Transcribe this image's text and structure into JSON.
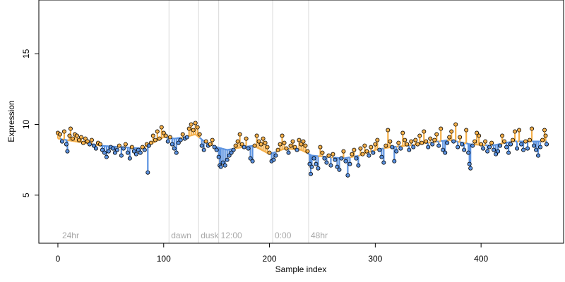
{
  "chart_data": {
    "type": "scatter",
    "title": "",
    "xlabel": "Sample index",
    "ylabel": "Expression",
    "xlim": [
      -18,
      478
    ],
    "ylim": [
      1.6,
      18.8
    ],
    "xticks": [
      0,
      100,
      200,
      300,
      400
    ],
    "yticks": [
      5,
      10,
      15
    ],
    "grid": false,
    "legend": "none",
    "colors": {
      "above": "#f5b04a",
      "below": "#5b92e0",
      "point_stroke": "#000000",
      "phase_line": "#d9d9d9",
      "phase_text": "#a8a8a8",
      "axis": "#000000"
    },
    "phases": [
      {
        "label": "24hr",
        "x": 2
      },
      {
        "label": "dawn",
        "x": 105
      },
      {
        "label": "dusk",
        "x": 133
      },
      {
        "label": "12:00",
        "x": 152
      },
      {
        "label": "0:00",
        "x": 203
      },
      {
        "label": "48hr",
        "x": 237
      }
    ],
    "baseline_knots": [
      [
        0,
        9.0
      ],
      [
        40,
        8.5
      ],
      [
        80,
        8.3
      ],
      [
        100,
        9.1
      ],
      [
        110,
        9.0
      ],
      [
        120,
        9.1
      ],
      [
        130,
        9.3
      ],
      [
        140,
        8.7
      ],
      [
        150,
        8.4
      ],
      [
        160,
        8.2
      ],
      [
        175,
        8.4
      ],
      [
        185,
        8.5
      ],
      [
        200,
        7.9
      ],
      [
        215,
        8.3
      ],
      [
        230,
        8.2
      ],
      [
        240,
        7.8
      ],
      [
        255,
        7.7
      ],
      [
        270,
        7.6
      ],
      [
        285,
        7.8
      ],
      [
        300,
        8.2
      ],
      [
        315,
        8.4
      ],
      [
        330,
        8.5
      ],
      [
        350,
        8.7
      ],
      [
        370,
        8.9
      ],
      [
        390,
        8.6
      ],
      [
        410,
        8.5
      ],
      [
        430,
        8.8
      ],
      [
        462,
        8.8
      ]
    ],
    "points": [
      [
        0,
        9.4
      ],
      [
        2,
        9.3
      ],
      [
        4,
        8.8
      ],
      [
        6,
        9.5
      ],
      [
        8,
        8.6
      ],
      [
        9,
        8.1
      ],
      [
        11,
        9.2
      ],
      [
        12,
        9.7
      ],
      [
        14,
        9.0
      ],
      [
        16,
        9.3
      ],
      [
        18,
        9.2
      ],
      [
        20,
        8.9
      ],
      [
        22,
        9.1
      ],
      [
        24,
        8.7
      ],
      [
        26,
        9.0
      ],
      [
        28,
        8.8
      ],
      [
        30,
        8.6
      ],
      [
        32,
        8.9
      ],
      [
        34,
        8.5
      ],
      [
        36,
        8.3
      ],
      [
        38,
        8.7
      ],
      [
        40,
        8.6
      ],
      [
        42,
        8.2
      ],
      [
        44,
        8.0
      ],
      [
        46,
        7.7
      ],
      [
        48,
        8.1
      ],
      [
        50,
        8.4
      ],
      [
        52,
        8.3
      ],
      [
        54,
        8.0
      ],
      [
        56,
        8.2
      ],
      [
        58,
        8.5
      ],
      [
        60,
        7.8
      ],
      [
        62,
        8.3
      ],
      [
        64,
        8.6
      ],
      [
        66,
        8.0
      ],
      [
        68,
        7.6
      ],
      [
        70,
        8.4
      ],
      [
        72,
        8.1
      ],
      [
        74,
        7.9
      ],
      [
        76,
        8.2
      ],
      [
        78,
        8.0
      ],
      [
        80,
        8.4
      ],
      [
        82,
        8.2
      ],
      [
        84,
        8.6
      ],
      [
        86,
        8.5
      ],
      [
        85,
        6.6
      ],
      [
        88,
        8.7
      ],
      [
        90,
        9.2
      ],
      [
        92,
        8.9
      ],
      [
        94,
        9.5
      ],
      [
        96,
        9.0
      ],
      [
        98,
        9.8
      ],
      [
        100,
        9.4
      ],
      [
        102,
        9.2
      ],
      [
        104,
        8.8
      ],
      [
        106,
        9.1
      ],
      [
        108,
        8.6
      ],
      [
        110,
        8.3
      ],
      [
        112,
        8.0
      ],
      [
        114,
        8.7
      ],
      [
        116,
        8.9
      ],
      [
        118,
        9.3
      ],
      [
        120,
        9.0
      ],
      [
        122,
        9.1
      ],
      [
        124,
        9.7
      ],
      [
        126,
        10.0
      ],
      [
        128,
        9.6
      ],
      [
        130,
        10.1
      ],
      [
        132,
        9.8
      ],
      [
        134,
        9.3
      ],
      [
        136,
        8.5
      ],
      [
        138,
        8.2
      ],
      [
        140,
        8.8
      ],
      [
        142,
        8.5
      ],
      [
        144,
        8.6
      ],
      [
        146,
        8.9
      ],
      [
        148,
        8.4
      ],
      [
        150,
        8.2
      ],
      [
        152,
        7.7
      ],
      [
        153,
        7.1
      ],
      [
        154,
        7.0
      ],
      [
        156,
        7.3
      ],
      [
        158,
        7.1
      ],
      [
        160,
        7.5
      ],
      [
        162,
        7.8
      ],
      [
        164,
        8.0
      ],
      [
        166,
        8.2
      ],
      [
        168,
        8.5
      ],
      [
        170,
        8.8
      ],
      [
        172,
        9.3
      ],
      [
        174,
        8.6
      ],
      [
        176,
        8.4
      ],
      [
        178,
        9.0
      ],
      [
        180,
        8.3
      ],
      [
        182,
        7.6
      ],
      [
        184,
        7.4
      ],
      [
        186,
        8.5
      ],
      [
        188,
        9.2
      ],
      [
        190,
        8.8
      ],
      [
        192,
        8.6
      ],
      [
        194,
        9.0
      ],
      [
        196,
        8.7
      ],
      [
        198,
        8.4
      ],
      [
        200,
        8.0
      ],
      [
        202,
        7.4
      ],
      [
        204,
        7.5
      ],
      [
        206,
        7.8
      ],
      [
        208,
        8.2
      ],
      [
        210,
        8.6
      ],
      [
        212,
        9.2
      ],
      [
        214,
        8.7
      ],
      [
        216,
        8.3
      ],
      [
        218,
        8.0
      ],
      [
        220,
        8.5
      ],
      [
        222,
        8.8
      ],
      [
        224,
        8.4
      ],
      [
        226,
        8.2
      ],
      [
        228,
        8.9
      ],
      [
        230,
        8.6
      ],
      [
        232,
        8.8
      ],
      [
        234,
        8.5
      ],
      [
        236,
        8.1
      ],
      [
        238,
        7.2
      ],
      [
        239,
        6.5
      ],
      [
        240,
        7.0
      ],
      [
        242,
        7.6
      ],
      [
        244,
        7.2
      ],
      [
        246,
        6.9
      ],
      [
        248,
        8.4
      ],
      [
        250,
        8.0
      ],
      [
        252,
        7.6
      ],
      [
        254,
        7.3
      ],
      [
        256,
        7.8
      ],
      [
        258,
        7.1
      ],
      [
        260,
        7.9
      ],
      [
        262,
        7.5
      ],
      [
        264,
        7.0
      ],
      [
        266,
        6.8
      ],
      [
        268,
        7.6
      ],
      [
        270,
        8.1
      ],
      [
        272,
        7.4
      ],
      [
        274,
        6.4
      ],
      [
        276,
        7.2
      ],
      [
        278,
        7.9
      ],
      [
        280,
        8.2
      ],
      [
        282,
        7.6
      ],
      [
        284,
        7.1
      ],
      [
        286,
        8.3
      ],
      [
        288,
        7.9
      ],
      [
        290,
        8.5
      ],
      [
        292,
        8.1
      ],
      [
        294,
        7.8
      ],
      [
        296,
        8.4
      ],
      [
        298,
        8.0
      ],
      [
        300,
        8.6
      ],
      [
        302,
        8.9
      ],
      [
        304,
        8.2
      ],
      [
        306,
        7.7
      ],
      [
        308,
        7.3
      ],
      [
        310,
        8.5
      ],
      [
        312,
        9.6
      ],
      [
        314,
        8.8
      ],
      [
        316,
        8.4
      ],
      [
        318,
        7.4
      ],
      [
        320,
        8.1
      ],
      [
        322,
        8.7
      ],
      [
        324,
        8.3
      ],
      [
        326,
        9.4
      ],
      [
        328,
        8.9
      ],
      [
        330,
        8.6
      ],
      [
        332,
        8.2
      ],
      [
        334,
        8.8
      ],
      [
        336,
        8.4
      ],
      [
        338,
        8.9
      ],
      [
        340,
        8.6
      ],
      [
        342,
        9.2
      ],
      [
        344,
        8.7
      ],
      [
        346,
        9.5
      ],
      [
        348,
        8.8
      ],
      [
        350,
        8.4
      ],
      [
        352,
        9.0
      ],
      [
        354,
        8.6
      ],
      [
        356,
        8.9
      ],
      [
        358,
        9.3
      ],
      [
        360,
        8.5
      ],
      [
        362,
        9.7
      ],
      [
        364,
        8.2
      ],
      [
        366,
        8.0
      ],
      [
        368,
        8.7
      ],
      [
        370,
        9.1
      ],
      [
        372,
        9.5
      ],
      [
        374,
        8.8
      ],
      [
        376,
        10.0
      ],
      [
        378,
        8.4
      ],
      [
        380,
        9.1
      ],
      [
        382,
        8.6
      ],
      [
        384,
        8.2
      ],
      [
        386,
        9.6
      ],
      [
        388,
        8.0
      ],
      [
        389,
        7.2
      ],
      [
        390,
        6.9
      ],
      [
        392,
        8.5
      ],
      [
        394,
        8.8
      ],
      [
        396,
        9.4
      ],
      [
        398,
        9.2
      ],
      [
        400,
        8.6
      ],
      [
        402,
        8.3
      ],
      [
        404,
        8.8
      ],
      [
        406,
        8.1
      ],
      [
        408,
        8.4
      ],
      [
        410,
        8.7
      ],
      [
        412,
        8.2
      ],
      [
        414,
        7.9
      ],
      [
        416,
        8.1
      ],
      [
        418,
        8.5
      ],
      [
        420,
        9.2
      ],
      [
        422,
        8.8
      ],
      [
        424,
        8.4
      ],
      [
        426,
        8.0
      ],
      [
        428,
        8.6
      ],
      [
        430,
        8.9
      ],
      [
        432,
        9.5
      ],
      [
        434,
        8.3
      ],
      [
        436,
        9.6
      ],
      [
        438,
        8.6
      ],
      [
        440,
        8.2
      ],
      [
        442,
        8.8
      ],
      [
        444,
        8.3
      ],
      [
        446,
        8.9
      ],
      [
        448,
        9.7
      ],
      [
        450,
        8.5
      ],
      [
        452,
        8.2
      ],
      [
        454,
        7.8
      ],
      [
        456,
        8.4
      ],
      [
        458,
        8.9
      ],
      [
        460,
        9.6
      ],
      [
        461,
        9.2
      ],
      [
        462,
        8.6
      ]
    ]
  }
}
